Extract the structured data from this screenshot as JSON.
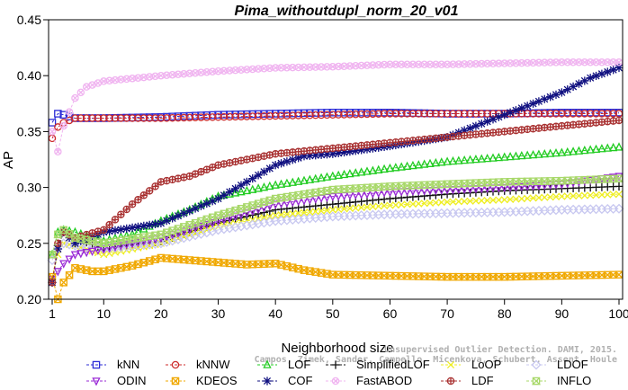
{
  "chart_data": {
    "type": "line",
    "title": "Pima_withoutdupl_norm_20_v01",
    "xlabel": "Neighborhood size",
    "ylabel": "AP",
    "xlim": [
      1,
      100
    ],
    "ylim": [
      0.2,
      0.45
    ],
    "xticks": [
      1,
      10,
      20,
      30,
      40,
      50,
      60,
      70,
      80,
      90,
      100
    ],
    "yticks": [
      0.2,
      0.25,
      0.3,
      0.35,
      0.4,
      0.45
    ],
    "ytick_labels": [
      "0.20",
      "0.25",
      "0.30",
      "0.35",
      "0.40",
      "0.45"
    ],
    "legend_position": "bottom",
    "watermark": [
      "Unsupervised Outlier Detection. DAMI, 2015.",
      "Campos, Zimek, Sander, Campello, Micenkova, Schubert, Assent, Houle"
    ],
    "series": [
      {
        "name": "kNN",
        "color": "#2b2bd6",
        "marker": "square",
        "x": [
          1,
          2,
          3,
          5,
          10,
          20,
          30,
          40,
          50,
          60,
          70,
          80,
          90,
          100
        ],
        "values": [
          0.358,
          0.366,
          0.365,
          0.362,
          0.362,
          0.363,
          0.365,
          0.366,
          0.367,
          0.367,
          0.366,
          0.366,
          0.367,
          0.367
        ]
      },
      {
        "name": "kNNW",
        "color": "#cc2a2a",
        "marker": "circle",
        "x": [
          1,
          2,
          3,
          5,
          10,
          20,
          30,
          40,
          50,
          60,
          70,
          80,
          90,
          100
        ],
        "values": [
          0.344,
          0.354,
          0.358,
          0.362,
          0.362,
          0.362,
          0.363,
          0.364,
          0.365,
          0.366,
          0.366,
          0.366,
          0.366,
          0.366
        ]
      },
      {
        "name": "LOF",
        "color": "#22cc22",
        "marker": "triangle",
        "x": [
          1,
          2,
          3,
          5,
          10,
          15,
          20,
          25,
          30,
          40,
          50,
          60,
          70,
          80,
          90,
          100
        ],
        "values": [
          0.24,
          0.26,
          0.262,
          0.26,
          0.252,
          0.258,
          0.27,
          0.28,
          0.292,
          0.302,
          0.31,
          0.317,
          0.323,
          0.327,
          0.331,
          0.336
        ]
      },
      {
        "name": "SimplifiedLOF",
        "color": "#111111",
        "marker": "plus",
        "x": [
          1,
          2,
          3,
          5,
          10,
          20,
          30,
          40,
          50,
          60,
          70,
          80,
          90,
          100
        ],
        "values": [
          0.215,
          0.248,
          0.26,
          0.255,
          0.245,
          0.252,
          0.268,
          0.28,
          0.285,
          0.29,
          0.294,
          0.297,
          0.299,
          0.301
        ]
      },
      {
        "name": "LoOP",
        "color": "#eeee22",
        "marker": "cross",
        "x": [
          1,
          2,
          3,
          5,
          10,
          20,
          30,
          40,
          50,
          60,
          70,
          80,
          90,
          100
        ],
        "values": [
          0.22,
          0.24,
          0.25,
          0.248,
          0.24,
          0.25,
          0.265,
          0.275,
          0.28,
          0.284,
          0.287,
          0.289,
          0.292,
          0.294
        ]
      },
      {
        "name": "LDOF",
        "color": "#c8c8f0",
        "marker": "diamond",
        "x": [
          1,
          2,
          3,
          5,
          10,
          20,
          30,
          40,
          50,
          60,
          70,
          80,
          90,
          100
        ],
        "values": [
          0.235,
          0.245,
          0.25,
          0.248,
          0.245,
          0.25,
          0.262,
          0.27,
          0.274,
          0.276,
          0.277,
          0.278,
          0.28,
          0.281
        ]
      },
      {
        "name": "ODIN",
        "color": "#9a2ad6",
        "marker": "triangle-down",
        "x": [
          1,
          2,
          3,
          5,
          10,
          20,
          30,
          40,
          50,
          60,
          70,
          80,
          90,
          100
        ],
        "values": [
          0.218,
          0.225,
          0.232,
          0.24,
          0.245,
          0.255,
          0.27,
          0.285,
          0.292,
          0.296,
          0.298,
          0.3,
          0.303,
          0.31
        ]
      },
      {
        "name": "KDEOS",
        "color": "#f0a800",
        "marker": "square-x",
        "x": [
          1,
          2,
          3,
          5,
          8,
          10,
          15,
          20,
          25,
          30,
          35,
          40,
          45,
          50,
          60,
          70,
          80,
          90,
          100
        ],
        "values": [
          0.22,
          0.2,
          0.215,
          0.228,
          0.225,
          0.225,
          0.23,
          0.237,
          0.235,
          0.233,
          0.231,
          0.232,
          0.226,
          0.222,
          0.221,
          0.22,
          0.22,
          0.221,
          0.222
        ]
      },
      {
        "name": "COF",
        "color": "#101080",
        "marker": "asterisk",
        "x": [
          1,
          2,
          3,
          5,
          10,
          20,
          30,
          40,
          45,
          50,
          60,
          70,
          75,
          80,
          85,
          90,
          95,
          100
        ],
        "values": [
          0.215,
          0.245,
          0.26,
          0.25,
          0.26,
          0.268,
          0.29,
          0.32,
          0.328,
          0.33,
          0.337,
          0.345,
          0.355,
          0.365,
          0.375,
          0.385,
          0.398,
          0.407
        ]
      },
      {
        "name": "FastABOD",
        "color": "#f0b4f0",
        "marker": "circle-x",
        "x": [
          1,
          2,
          3,
          5,
          7,
          10,
          20,
          30,
          40,
          50,
          60,
          70,
          80,
          90,
          100
        ],
        "values": [
          0.35,
          0.332,
          0.355,
          0.38,
          0.39,
          0.395,
          0.4,
          0.404,
          0.407,
          0.408,
          0.41,
          0.41,
          0.411,
          0.412,
          0.412
        ]
      },
      {
        "name": "LDF",
        "color": "#a83030",
        "marker": "circle-plus",
        "x": [
          1,
          2,
          3,
          5,
          10,
          15,
          20,
          25,
          30,
          35,
          40,
          50,
          60,
          70,
          80,
          90,
          100
        ],
        "values": [
          0.215,
          0.25,
          0.26,
          0.255,
          0.262,
          0.285,
          0.305,
          0.31,
          0.32,
          0.325,
          0.33,
          0.335,
          0.34,
          0.345,
          0.35,
          0.355,
          0.36
        ]
      },
      {
        "name": "INFLO",
        "color": "#a8d86a",
        "marker": "hourglass",
        "x": [
          1,
          2,
          3,
          5,
          10,
          20,
          30,
          40,
          50,
          60,
          70,
          80,
          90,
          100
        ],
        "values": [
          0.24,
          0.258,
          0.262,
          0.255,
          0.25,
          0.258,
          0.275,
          0.29,
          0.298,
          0.301,
          0.303,
          0.305,
          0.306,
          0.308
        ]
      }
    ]
  }
}
